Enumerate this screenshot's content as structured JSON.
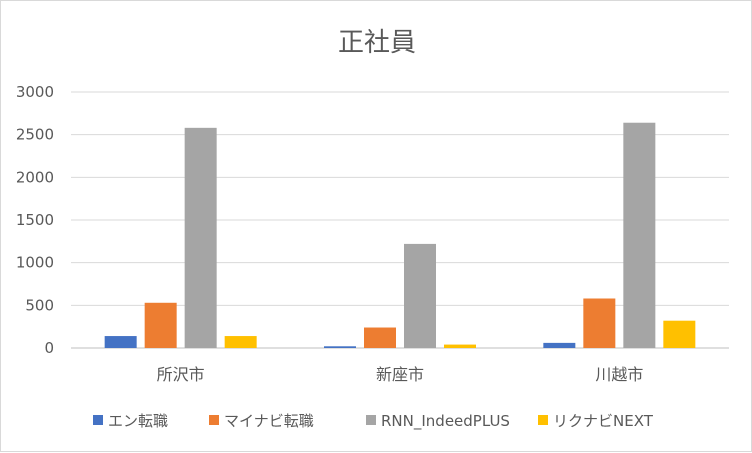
{
  "chart_data": {
    "type": "bar",
    "title": "正社員",
    "categories": [
      "所沢市",
      "新座市",
      "川越市"
    ],
    "series": [
      {
        "name": "エン転職",
        "color": "#4472C4",
        "values": [
          140,
          20,
          60
        ]
      },
      {
        "name": "マイナビ転職",
        "color": "#ED7D31",
        "values": [
          530,
          240,
          580
        ]
      },
      {
        "name": "RNN_IndeedPLUS",
        "color": "#A5A5A5",
        "values": [
          2580,
          1220,
          2640
        ]
      },
      {
        "name": "リクナビNEXT",
        "color": "#FFC000",
        "values": [
          140,
          40,
          320
        ]
      }
    ],
    "ylim": [
      0,
      3000
    ],
    "yticks": [
      0,
      500,
      1000,
      1500,
      2000,
      2500,
      3000
    ],
    "grid": true,
    "legend": "bottom"
  }
}
